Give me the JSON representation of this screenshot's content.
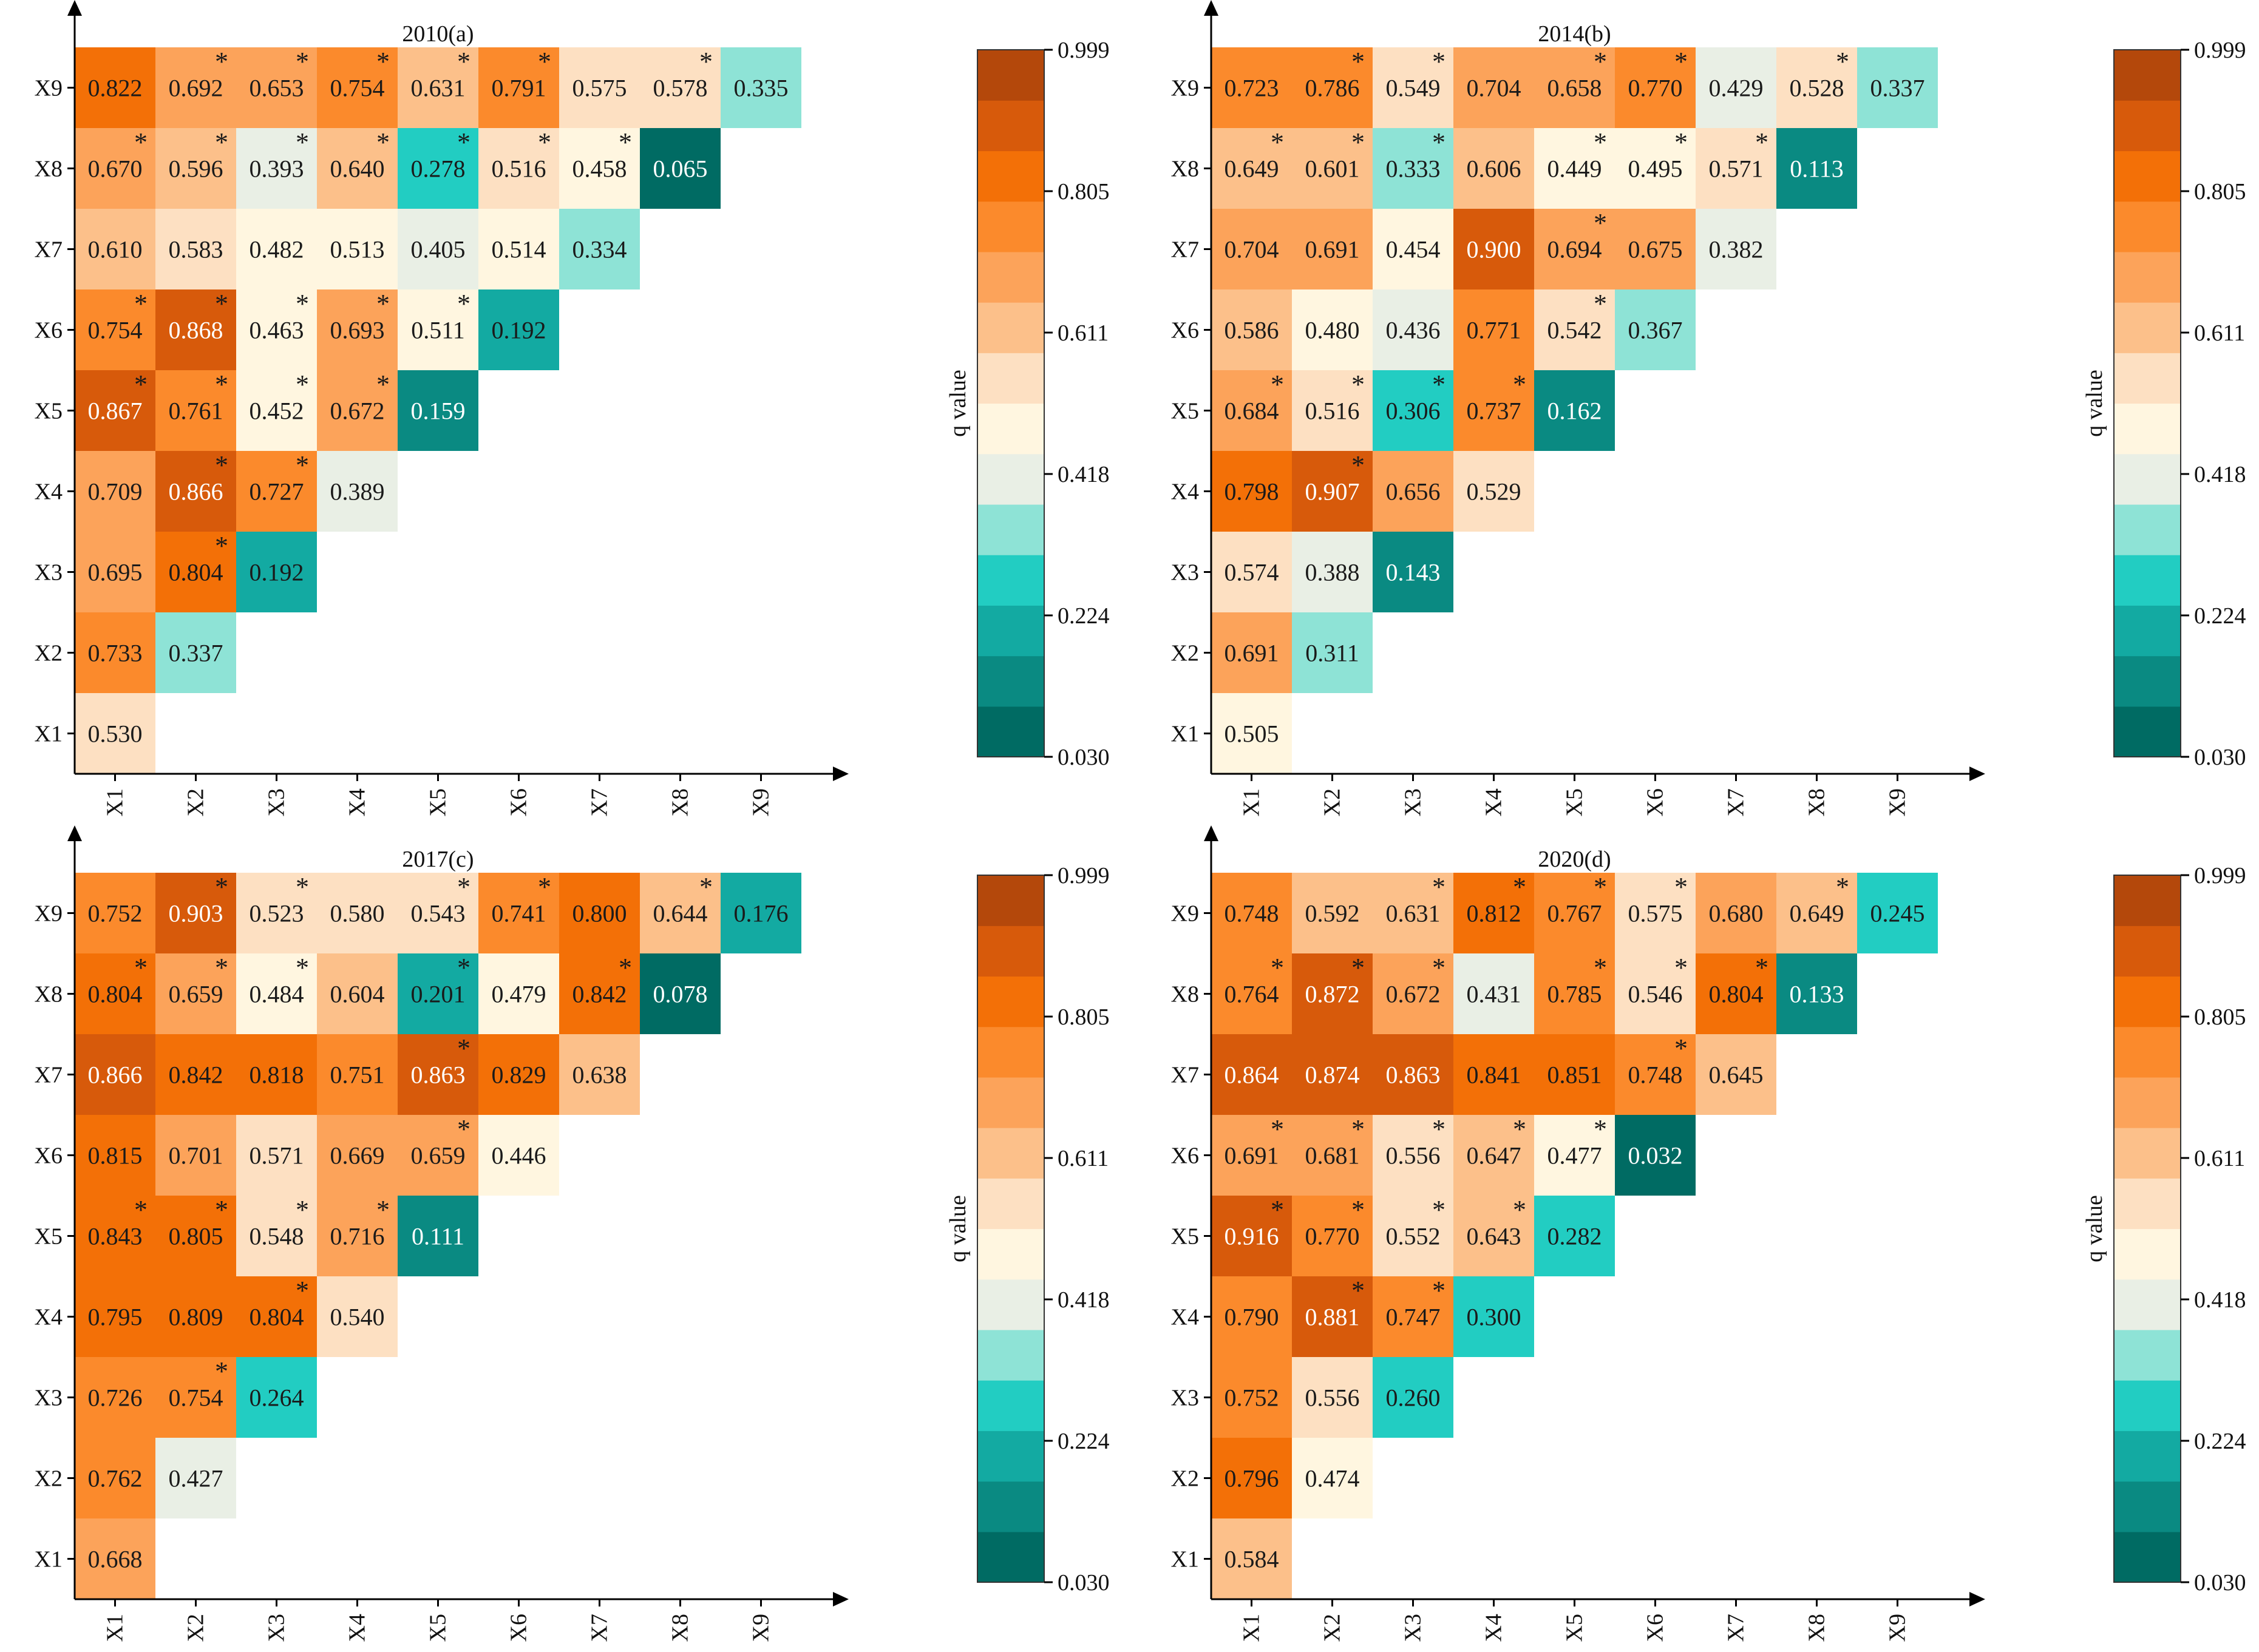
{
  "figure": {
    "variables": [
      "X1",
      "X2",
      "X3",
      "X4",
      "X5",
      "X6",
      "X7",
      "X8",
      "X9"
    ],
    "colorbar": {
      "label": "q value",
      "ticks": [
        "0.999",
        "0.805",
        "0.611",
        "0.418",
        "0.224",
        "0.030"
      ],
      "range": [
        0.03,
        0.999
      ],
      "stops": [
        "#006b63",
        "#0a8a82",
        "#13aaa2",
        "#22cdc2",
        "#8ee3d6",
        "#e9efe5",
        "#fff6e0",
        "#fde0c2",
        "#fcc08a",
        "#fca35a",
        "#fb8a2c",
        "#f37007",
        "#d75a0b",
        "#b4480b"
      ]
    },
    "significance_marker": "*"
  },
  "chart_data": [
    {
      "type": "heatmap",
      "title": "2010(a)",
      "x_labels": [
        "X1",
        "X2",
        "X3",
        "X4",
        "X5",
        "X6",
        "X7",
        "X8",
        "X9"
      ],
      "y_labels": [
        "X1",
        "X2",
        "X3",
        "X4",
        "X5",
        "X6",
        "X7",
        "X8",
        "X9"
      ],
      "rows": [
        {
          "y": "X1",
          "values": [
            "0.530"
          ],
          "sig": [
            0
          ]
        },
        {
          "y": "X2",
          "values": [
            "0.733",
            "0.337"
          ],
          "sig": [
            0,
            0
          ]
        },
        {
          "y": "X3",
          "values": [
            "0.695",
            "0.804",
            "0.192"
          ],
          "sig": [
            0,
            1,
            0
          ]
        },
        {
          "y": "X4",
          "values": [
            "0.709",
            "0.866",
            "0.727",
            "0.389"
          ],
          "sig": [
            0,
            1,
            1,
            0
          ]
        },
        {
          "y": "X5",
          "values": [
            "0.867",
            "0.761",
            "0.452",
            "0.672",
            "0.159"
          ],
          "sig": [
            1,
            1,
            1,
            1,
            0
          ]
        },
        {
          "y": "X6",
          "values": [
            "0.754",
            "0.868",
            "0.463",
            "0.693",
            "0.511",
            "0.192"
          ],
          "sig": [
            1,
            1,
            1,
            1,
            1,
            0
          ]
        },
        {
          "y": "X7",
          "values": [
            "0.610",
            "0.583",
            "0.482",
            "0.513",
            "0.405",
            "0.514",
            "0.334"
          ],
          "sig": [
            0,
            0,
            0,
            0,
            0,
            0,
            0
          ]
        },
        {
          "y": "X8",
          "values": [
            "0.670",
            "0.596",
            "0.393",
            "0.640",
            "0.278",
            "0.516",
            "0.458",
            "0.065"
          ],
          "sig": [
            1,
            1,
            1,
            1,
            1,
            1,
            1,
            0
          ]
        },
        {
          "y": "X9",
          "values": [
            "0.822",
            "0.692",
            "0.653",
            "0.754",
            "0.631",
            "0.791",
            "0.575",
            "0.578",
            "0.335"
          ],
          "sig": [
            0,
            1,
            1,
            1,
            1,
            1,
            0,
            1,
            0
          ]
        }
      ]
    },
    {
      "type": "heatmap",
      "title": "2014(b)",
      "x_labels": [
        "X1",
        "X2",
        "X3",
        "X4",
        "X5",
        "X6",
        "X7",
        "X8",
        "X9"
      ],
      "y_labels": [
        "X1",
        "X2",
        "X3",
        "X4",
        "X5",
        "X6",
        "X7",
        "X8",
        "X9"
      ],
      "rows": [
        {
          "y": "X1",
          "values": [
            "0.505"
          ],
          "sig": [
            0
          ]
        },
        {
          "y": "X2",
          "values": [
            "0.691",
            "0.311"
          ],
          "sig": [
            0,
            0
          ]
        },
        {
          "y": "X3",
          "values": [
            "0.574",
            "0.388",
            "0.143"
          ],
          "sig": [
            0,
            0,
            0
          ]
        },
        {
          "y": "X4",
          "values": [
            "0.798",
            "0.907",
            "0.656",
            "0.529"
          ],
          "sig": [
            0,
            1,
            0,
            0
          ]
        },
        {
          "y": "X5",
          "values": [
            "0.684",
            "0.516",
            "0.306",
            "0.737",
            "0.162"
          ],
          "sig": [
            1,
            1,
            1,
            1,
            0
          ]
        },
        {
          "y": "X6",
          "values": [
            "0.586",
            "0.480",
            "0.436",
            "0.771",
            "0.542",
            "0.367"
          ],
          "sig": [
            0,
            0,
            0,
            0,
            1,
            0
          ]
        },
        {
          "y": "X7",
          "values": [
            "0.704",
            "0.691",
            "0.454",
            "0.900",
            "0.694",
            "0.675",
            "0.382"
          ],
          "sig": [
            0,
            0,
            0,
            0,
            1,
            0,
            0
          ]
        },
        {
          "y": "X8",
          "values": [
            "0.649",
            "0.601",
            "0.333",
            "0.606",
            "0.449",
            "0.495",
            "0.571",
            "0.113"
          ],
          "sig": [
            1,
            1,
            1,
            0,
            1,
            1,
            1,
            0
          ]
        },
        {
          "y": "X9",
          "values": [
            "0.723",
            "0.786",
            "0.549",
            "0.704",
            "0.658",
            "0.770",
            "0.429",
            "0.528",
            "0.337"
          ],
          "sig": [
            0,
            1,
            1,
            0,
            1,
            1,
            0,
            1,
            0
          ]
        }
      ]
    },
    {
      "type": "heatmap",
      "title": "2017(c)",
      "x_labels": [
        "X1",
        "X2",
        "X3",
        "X4",
        "X5",
        "X6",
        "X7",
        "X8",
        "X9"
      ],
      "y_labels": [
        "X1",
        "X2",
        "X3",
        "X4",
        "X5",
        "X6",
        "X7",
        "X8",
        "X9"
      ],
      "rows": [
        {
          "y": "X1",
          "values": [
            "0.668"
          ],
          "sig": [
            0
          ]
        },
        {
          "y": "X2",
          "values": [
            "0.762",
            "0.427"
          ],
          "sig": [
            0,
            0
          ]
        },
        {
          "y": "X3",
          "values": [
            "0.726",
            "0.754",
            "0.264"
          ],
          "sig": [
            0,
            1,
            0
          ]
        },
        {
          "y": "X4",
          "values": [
            "0.795",
            "0.809",
            "0.804",
            "0.540"
          ],
          "sig": [
            0,
            0,
            1,
            0
          ]
        },
        {
          "y": "X5",
          "values": [
            "0.843",
            "0.805",
            "0.548",
            "0.716",
            "0.111"
          ],
          "sig": [
            1,
            1,
            1,
            1,
            0
          ]
        },
        {
          "y": "X6",
          "values": [
            "0.815",
            "0.701",
            "0.571",
            "0.669",
            "0.659",
            "0.446"
          ],
          "sig": [
            0,
            0,
            0,
            0,
            1,
            0
          ]
        },
        {
          "y": "X7",
          "values": [
            "0.866",
            "0.842",
            "0.818",
            "0.751",
            "0.863",
            "0.829",
            "0.638"
          ],
          "sig": [
            0,
            0,
            0,
            0,
            1,
            0,
            0
          ]
        },
        {
          "y": "X8",
          "values": [
            "0.804",
            "0.659",
            "0.484",
            "0.604",
            "0.201",
            "0.479",
            "0.842",
            "0.078"
          ],
          "sig": [
            1,
            1,
            1,
            0,
            1,
            0,
            1,
            0
          ]
        },
        {
          "y": "X9",
          "values": [
            "0.752",
            "0.903",
            "0.523",
            "0.580",
            "0.543",
            "0.741",
            "0.800",
            "0.644",
            "0.176"
          ],
          "sig": [
            0,
            1,
            1,
            0,
            1,
            1,
            0,
            1,
            0
          ]
        }
      ]
    },
    {
      "type": "heatmap",
      "title": "2020(d)",
      "x_labels": [
        "X1",
        "X2",
        "X3",
        "X4",
        "X5",
        "X6",
        "X7",
        "X8",
        "X9"
      ],
      "y_labels": [
        "X1",
        "X2",
        "X3",
        "X4",
        "X5",
        "X6",
        "X7",
        "X8",
        "X9"
      ],
      "rows": [
        {
          "y": "X1",
          "values": [
            "0.584"
          ],
          "sig": [
            0
          ]
        },
        {
          "y": "X2",
          "values": [
            "0.796",
            "0.474"
          ],
          "sig": [
            0,
            0
          ]
        },
        {
          "y": "X3",
          "values": [
            "0.752",
            "0.556",
            "0.260"
          ],
          "sig": [
            0,
            0,
            0
          ]
        },
        {
          "y": "X4",
          "values": [
            "0.790",
            "0.881",
            "0.747",
            "0.300"
          ],
          "sig": [
            0,
            1,
            1,
            0
          ]
        },
        {
          "y": "X5",
          "values": [
            "0.916",
            "0.770",
            "0.552",
            "0.643",
            "0.282"
          ],
          "sig": [
            1,
            1,
            1,
            1,
            0
          ]
        },
        {
          "y": "X6",
          "values": [
            "0.691",
            "0.681",
            "0.556",
            "0.647",
            "0.477",
            "0.032"
          ],
          "sig": [
            1,
            1,
            1,
            1,
            1,
            0
          ]
        },
        {
          "y": "X7",
          "values": [
            "0.864",
            "0.874",
            "0.863",
            "0.841",
            "0.851",
            "0.748",
            "0.645"
          ],
          "sig": [
            0,
            0,
            0,
            0,
            0,
            1,
            0
          ]
        },
        {
          "y": "X8",
          "values": [
            "0.764",
            "0.872",
            "0.672",
            "0.431",
            "0.785",
            "0.546",
            "0.804",
            "0.133"
          ],
          "sig": [
            1,
            1,
            1,
            0,
            1,
            1,
            1,
            0
          ]
        },
        {
          "y": "X9",
          "values": [
            "0.748",
            "0.592",
            "0.631",
            "0.812",
            "0.767",
            "0.575",
            "0.680",
            "0.649",
            "0.245"
          ],
          "sig": [
            0,
            0,
            1,
            1,
            1,
            1,
            0,
            1,
            0
          ]
        }
      ]
    }
  ]
}
